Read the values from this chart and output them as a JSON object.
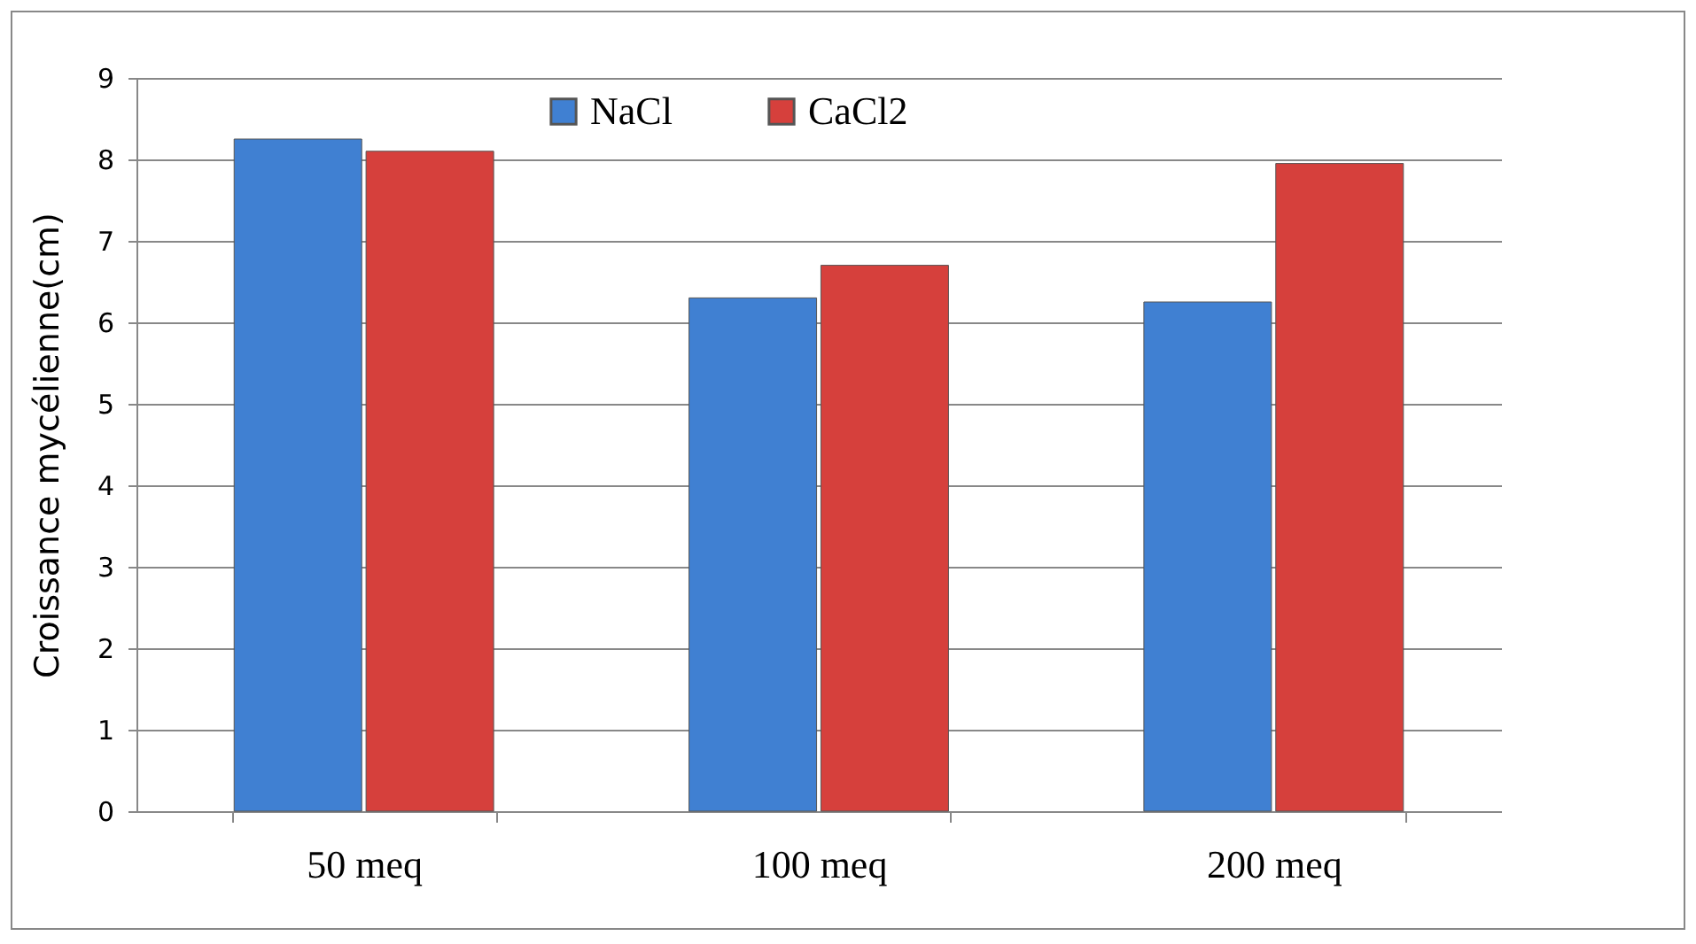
{
  "chart_data": {
    "type": "bar",
    "ylabel": "Croissance mycélienne(cm)",
    "categories": [
      "50 meq",
      "100 meq",
      "200 meq"
    ],
    "series": [
      {
        "name": "NaCl",
        "color": "#4080d2",
        "values": [
          8.25,
          6.3,
          6.25
        ]
      },
      {
        "name": "CaCl2",
        "color": "#d6403c",
        "values": [
          8.1,
          6.7,
          7.95
        ]
      }
    ],
    "ylim": [
      0,
      9
    ],
    "yticks": [
      0,
      1,
      2,
      3,
      4,
      5,
      6,
      7,
      8,
      9
    ],
    "grid": "y",
    "legend": "top"
  }
}
